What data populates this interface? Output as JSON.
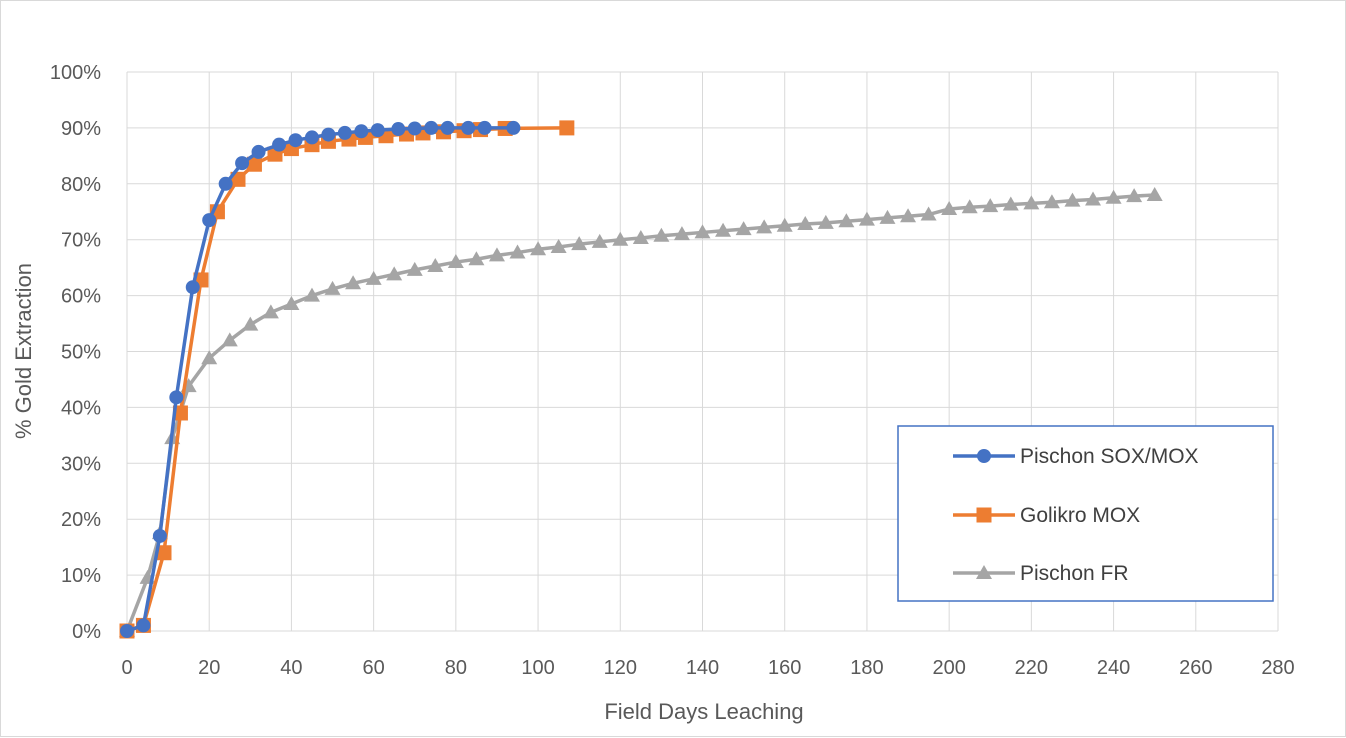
{
  "chart_data": {
    "type": "line",
    "title": "",
    "xlabel": "Field Days Leaching",
    "ylabel": "% Gold Extraction",
    "xlim": [
      0,
      280
    ],
    "ylim": [
      0,
      100
    ],
    "x_ticks": [
      "0",
      "20",
      "40",
      "60",
      "80",
      "100",
      "120",
      "140",
      "160",
      "180",
      "200",
      "220",
      "240",
      "260",
      "280"
    ],
    "y_ticks": [
      "0%",
      "10%",
      "20%",
      "30%",
      "40%",
      "50%",
      "60%",
      "70%",
      "80%",
      "90%",
      "100%"
    ],
    "grid": true,
    "legend_position": "bottom-right",
    "series": [
      {
        "name": "Pischon SOX/MOX",
        "color": "#4472C4",
        "marker": "circle",
        "points": [
          [
            0,
            0
          ],
          [
            4,
            1
          ],
          [
            8,
            17
          ],
          [
            12,
            41.8
          ],
          [
            16,
            61.5
          ],
          [
            20,
            73.5
          ],
          [
            24,
            80
          ],
          [
            28,
            83.7
          ],
          [
            32,
            85.7
          ],
          [
            37,
            87
          ],
          [
            41,
            87.8
          ],
          [
            45,
            88.3
          ],
          [
            49,
            88.8
          ],
          [
            53,
            89.1
          ],
          [
            57,
            89.4
          ],
          [
            61,
            89.6
          ],
          [
            66,
            89.8
          ],
          [
            70,
            89.9
          ],
          [
            74,
            90
          ],
          [
            78,
            90
          ],
          [
            83,
            90
          ],
          [
            87,
            90
          ],
          [
            94,
            90
          ]
        ]
      },
      {
        "name": "Golikro MOX",
        "color": "#ED7D31",
        "marker": "square",
        "points": [
          [
            0,
            0
          ],
          [
            4,
            1
          ],
          [
            9,
            14
          ],
          [
            13,
            39
          ],
          [
            18,
            62.8
          ],
          [
            22,
            75
          ],
          [
            27,
            80.8
          ],
          [
            31,
            83.5
          ],
          [
            36,
            85.3
          ],
          [
            40,
            86.3
          ],
          [
            45,
            87
          ],
          [
            49,
            87.6
          ],
          [
            54,
            88
          ],
          [
            58,
            88.3
          ],
          [
            63,
            88.6
          ],
          [
            68,
            88.9
          ],
          [
            72,
            89.1
          ],
          [
            77,
            89.3
          ],
          [
            82,
            89.5
          ],
          [
            86,
            89.7
          ],
          [
            92,
            89.9
          ],
          [
            107,
            90
          ]
        ]
      },
      {
        "name": "Pischon FR",
        "color": "#A5A5A5",
        "marker": "triangle",
        "points": [
          [
            0,
            0
          ],
          [
            5,
            9.5
          ],
          [
            8,
            17.5
          ],
          [
            11,
            34.5
          ],
          [
            15,
            43.8
          ],
          [
            20,
            48.8
          ],
          [
            25,
            52
          ],
          [
            30,
            54.8
          ],
          [
            35,
            57
          ],
          [
            40,
            58.5
          ],
          [
            45,
            60
          ],
          [
            50,
            61.2
          ],
          [
            55,
            62.2
          ],
          [
            60,
            63
          ],
          [
            65,
            63.8
          ],
          [
            70,
            64.6
          ],
          [
            75,
            65.3
          ],
          [
            80,
            66
          ],
          [
            85,
            66.5
          ],
          [
            90,
            67.2
          ],
          [
            95,
            67.7
          ],
          [
            100,
            68.3
          ],
          [
            105,
            68.7
          ],
          [
            110,
            69.2
          ],
          [
            115,
            69.6
          ],
          [
            120,
            70
          ],
          [
            125,
            70.3
          ],
          [
            130,
            70.7
          ],
          [
            135,
            71
          ],
          [
            140,
            71.3
          ],
          [
            145,
            71.6
          ],
          [
            150,
            71.9
          ],
          [
            155,
            72.2
          ],
          [
            160,
            72.5
          ],
          [
            165,
            72.8
          ],
          [
            170,
            73
          ],
          [
            175,
            73.3
          ],
          [
            180,
            73.6
          ],
          [
            185,
            73.9
          ],
          [
            190,
            74.2
          ],
          [
            195,
            74.5
          ],
          [
            200,
            75.5
          ],
          [
            205,
            75.8
          ],
          [
            210,
            76
          ],
          [
            215,
            76.3
          ],
          [
            220,
            76.5
          ],
          [
            225,
            76.7
          ],
          [
            230,
            77
          ],
          [
            235,
            77.2
          ],
          [
            240,
            77.5
          ],
          [
            245,
            77.8
          ],
          [
            250,
            78
          ]
        ]
      }
    ]
  }
}
